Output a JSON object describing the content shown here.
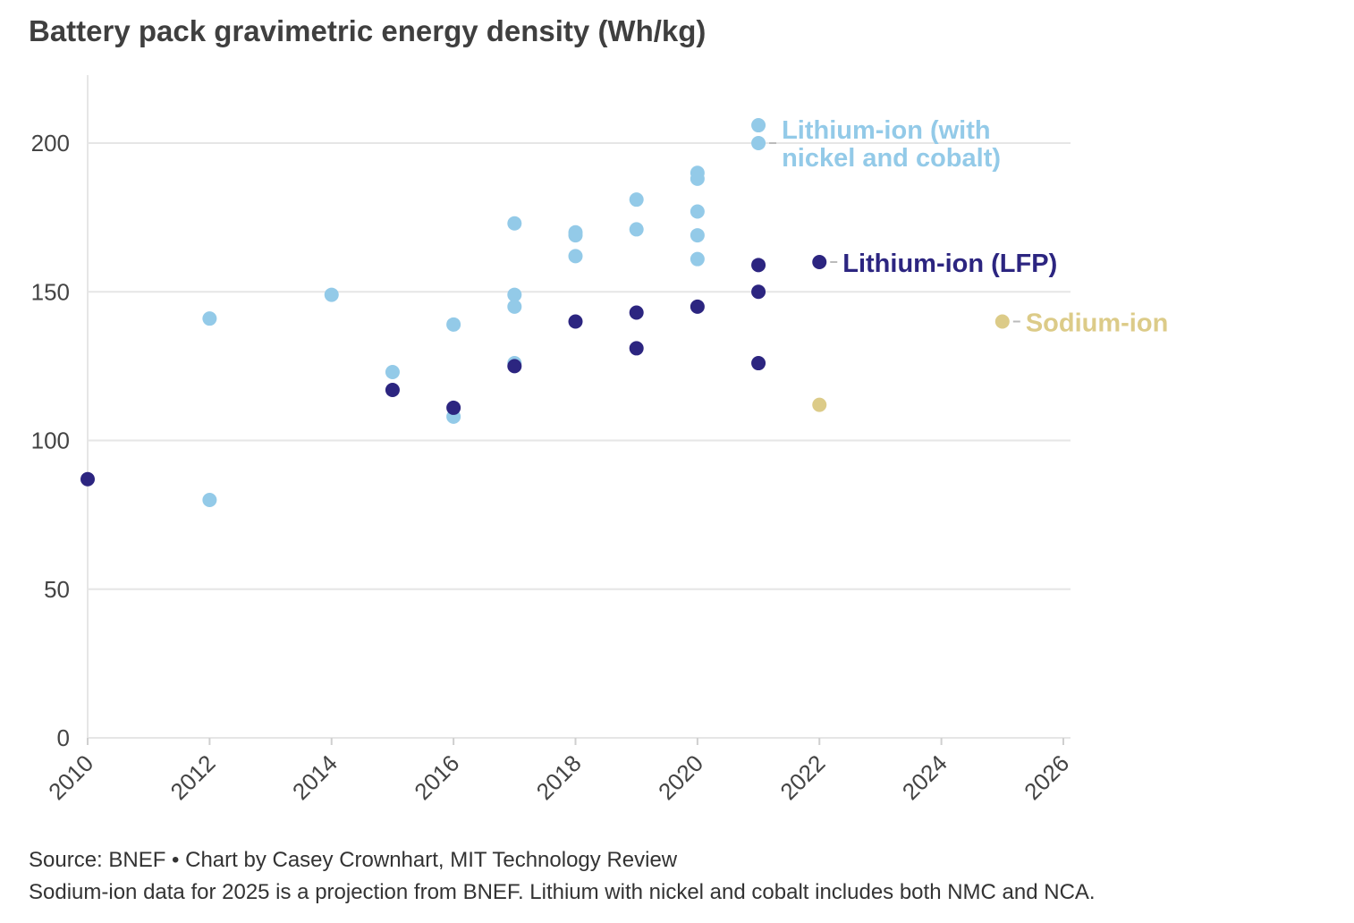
{
  "chart_data": {
    "type": "scatter",
    "title": "Battery pack gravimetric energy density (Wh/kg)",
    "xlabel": "",
    "ylabel": "",
    "xlim": [
      2010,
      2026
    ],
    "ylim": [
      0,
      220
    ],
    "yticks": [
      0,
      50,
      100,
      150,
      200
    ],
    "xticks": [
      2010,
      2012,
      2014,
      2016,
      2018,
      2020,
      2022,
      2024,
      2026
    ],
    "grid": true,
    "series": [
      {
        "name": "Lithium-ion (with nickel and cobalt)",
        "label_lines": [
          "Lithium-ion (with",
          "nickel and cobalt)"
        ],
        "color": "#93cae8",
        "points": [
          [
            2012,
            141
          ],
          [
            2012,
            80
          ],
          [
            2014,
            149
          ],
          [
            2015,
            123
          ],
          [
            2016,
            139
          ],
          [
            2016,
            108
          ],
          [
            2017,
            173
          ],
          [
            2017,
            149
          ],
          [
            2017,
            145
          ],
          [
            2017,
            126
          ],
          [
            2018,
            170
          ],
          [
            2018,
            169
          ],
          [
            2018,
            162
          ],
          [
            2019,
            181
          ],
          [
            2019,
            171
          ],
          [
            2020,
            190
          ],
          [
            2020,
            188
          ],
          [
            2020,
            177
          ],
          [
            2020,
            169
          ],
          [
            2020,
            161
          ],
          [
            2021,
            206
          ],
          [
            2021,
            200
          ]
        ]
      },
      {
        "name": "Lithium-ion (LFP)",
        "label_lines": [
          "Lithium-ion (LFP)"
        ],
        "color": "#2c2580",
        "points": [
          [
            2010,
            87
          ],
          [
            2015,
            117
          ],
          [
            2016,
            111
          ],
          [
            2017,
            125
          ],
          [
            2018,
            140
          ],
          [
            2019,
            143
          ],
          [
            2019,
            131
          ],
          [
            2020,
            145
          ],
          [
            2021,
            159
          ],
          [
            2021,
            150
          ],
          [
            2021,
            126
          ],
          [
            2022,
            160
          ]
        ]
      },
      {
        "name": "Sodium-ion",
        "label_lines": [
          "Sodium-ion"
        ],
        "color": "#dccb88",
        "points": [
          [
            2022,
            112
          ],
          [
            2025,
            140
          ]
        ]
      }
    ]
  },
  "footer": {
    "source": "Source: BNEF • Chart by Casey Crownhart, MIT Technology Review",
    "note": "Sodium-ion data for 2025 is a projection from BNEF. Lithium with nickel and cobalt includes both NMC and NCA."
  }
}
